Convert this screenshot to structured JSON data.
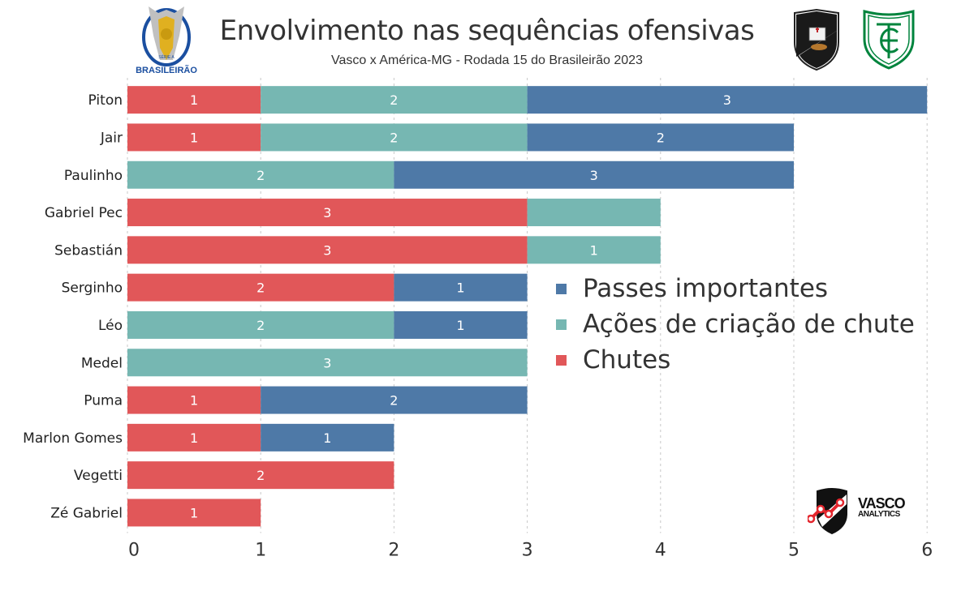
{
  "header": {
    "title": "Envolvimento nas sequências ofensivas",
    "subtitle": "Vasco x América-MG - Rodada 15 do Brasileirão 2023",
    "league_logo_text": "BRASILEIRÃO",
    "league_logo_small": "SÉRIE A",
    "brand_line1": "VASCO",
    "brand_line2": "ANALYTICS"
  },
  "colors": {
    "passes": "#4e79a7",
    "acoes": "#76b7b2",
    "chutes": "#e15759",
    "grid": "#c8c8c8",
    "text": "#333333"
  },
  "chart_data": {
    "type": "bar",
    "orientation": "horizontal",
    "stacked": true,
    "title": "Envolvimento nas sequências ofensivas",
    "subtitle": "Vasco x América-MG - Rodada 15 do Brasileirão 2023",
    "xlabel": "",
    "ylabel": "",
    "xlim": [
      0,
      6
    ],
    "xticks": [
      0,
      1,
      2,
      3,
      4,
      5,
      6
    ],
    "grid": "vertical dashed",
    "legend_position": "center-right",
    "categories": [
      "Piton",
      "Jair",
      "Paulinho",
      "Gabriel Pec",
      "Sebastián",
      "Serginho",
      "Léo",
      "Medel",
      "Puma",
      "Marlon Gomes",
      "Vegetti",
      "Zé Gabriel"
    ],
    "series": [
      {
        "name": "Chutes",
        "key": "chutes",
        "values": [
          1,
          1,
          0,
          3,
          3,
          2,
          0,
          0,
          1,
          1,
          2,
          1
        ]
      },
      {
        "name": "Ações de criação de chute",
        "key": "acoes",
        "values": [
          2,
          2,
          2,
          1,
          1,
          0,
          2,
          3,
          0,
          0,
          0,
          0
        ]
      },
      {
        "name": "Passes importantes",
        "key": "passes",
        "values": [
          3,
          2,
          3,
          0,
          0,
          1,
          1,
          0,
          2,
          1,
          0,
          0
        ]
      }
    ],
    "hidden_labels": [
      {
        "category": "Gabriel Pec",
        "series": "acoes"
      }
    ]
  },
  "legend": [
    {
      "label": "Passes importantes",
      "key": "passes"
    },
    {
      "label": "Ações de criação de chute",
      "key": "acoes"
    },
    {
      "label": "Chutes",
      "key": "chutes"
    }
  ]
}
